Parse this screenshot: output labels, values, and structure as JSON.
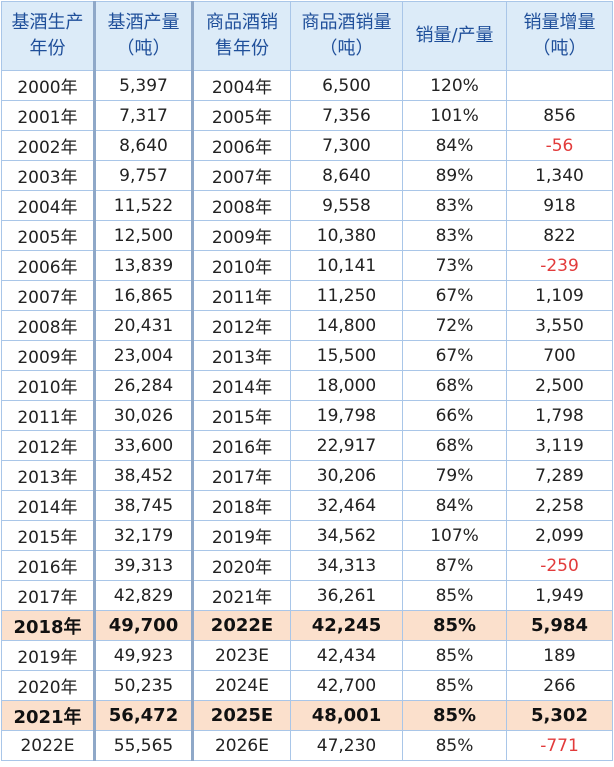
{
  "headers": [
    "基酒生产年份",
    "基酒产量（吨）",
    "商品酒销售年份",
    "商品酒销量（吨）",
    "销量/产量",
    "销量增量（吨）"
  ],
  "headers_lines": [
    [
      "基酒生产",
      "年份"
    ],
    [
      "基酒产量",
      "（吨）"
    ],
    [
      "商品酒销",
      "售年份"
    ],
    [
      "商品酒销量",
      "（吨）"
    ],
    [
      "销量/产量"
    ],
    [
      "销量增量",
      "（吨）"
    ]
  ],
  "rows": [
    {
      "base_year": "2000年",
      "base_output": "5,397",
      "sale_year": "2004年",
      "sales": "6,500",
      "ratio": "120%",
      "delta": "",
      "negative": false,
      "highlight": false
    },
    {
      "base_year": "2001年",
      "base_output": "7,317",
      "sale_year": "2005年",
      "sales": "7,356",
      "ratio": "101%",
      "delta": "856",
      "negative": false,
      "highlight": false
    },
    {
      "base_year": "2002年",
      "base_output": "8,640",
      "sale_year": "2006年",
      "sales": "7,300",
      "ratio": "84%",
      "delta": "-56",
      "negative": true,
      "highlight": false
    },
    {
      "base_year": "2003年",
      "base_output": "9,757",
      "sale_year": "2007年",
      "sales": "8,640",
      "ratio": "89%",
      "delta": "1,340",
      "negative": false,
      "highlight": false
    },
    {
      "base_year": "2004年",
      "base_output": "11,522",
      "sale_year": "2008年",
      "sales": "9,558",
      "ratio": "83%",
      "delta": "918",
      "negative": false,
      "highlight": false
    },
    {
      "base_year": "2005年",
      "base_output": "12,500",
      "sale_year": "2009年",
      "sales": "10,380",
      "ratio": "83%",
      "delta": "822",
      "negative": false,
      "highlight": false
    },
    {
      "base_year": "2006年",
      "base_output": "13,839",
      "sale_year": "2010年",
      "sales": "10,141",
      "ratio": "73%",
      "delta": "-239",
      "negative": true,
      "highlight": false
    },
    {
      "base_year": "2007年",
      "base_output": "16,865",
      "sale_year": "2011年",
      "sales": "11,250",
      "ratio": "67%",
      "delta": "1,109",
      "negative": false,
      "highlight": false
    },
    {
      "base_year": "2008年",
      "base_output": "20,431",
      "sale_year": "2012年",
      "sales": "14,800",
      "ratio": "72%",
      "delta": "3,550",
      "negative": false,
      "highlight": false
    },
    {
      "base_year": "2009年",
      "base_output": "23,004",
      "sale_year": "2013年",
      "sales": "15,500",
      "ratio": "67%",
      "delta": "700",
      "negative": false,
      "highlight": false
    },
    {
      "base_year": "2010年",
      "base_output": "26,284",
      "sale_year": "2014年",
      "sales": "18,000",
      "ratio": "68%",
      "delta": "2,500",
      "negative": false,
      "highlight": false
    },
    {
      "base_year": "2011年",
      "base_output": "30,026",
      "sale_year": "2015年",
      "sales": "19,798",
      "ratio": "66%",
      "delta": "1,798",
      "negative": false,
      "highlight": false
    },
    {
      "base_year": "2012年",
      "base_output": "33,600",
      "sale_year": "2016年",
      "sales": "22,917",
      "ratio": "68%",
      "delta": "3,119",
      "negative": false,
      "highlight": false
    },
    {
      "base_year": "2013年",
      "base_output": "38,452",
      "sale_year": "2017年",
      "sales": "30,206",
      "ratio": "79%",
      "delta": "7,289",
      "negative": false,
      "highlight": false
    },
    {
      "base_year": "2014年",
      "base_output": "38,745",
      "sale_year": "2018年",
      "sales": "32,464",
      "ratio": "84%",
      "delta": "2,258",
      "negative": false,
      "highlight": false
    },
    {
      "base_year": "2015年",
      "base_output": "32,179",
      "sale_year": "2019年",
      "sales": "34,562",
      "ratio": "107%",
      "delta": "2,099",
      "negative": false,
      "highlight": false
    },
    {
      "base_year": "2016年",
      "base_output": "39,313",
      "sale_year": "2020年",
      "sales": "34,313",
      "ratio": "87%",
      "delta": "-250",
      "negative": true,
      "highlight": false
    },
    {
      "base_year": "2017年",
      "base_output": "42,829",
      "sale_year": "2021年",
      "sales": "36,261",
      "ratio": "85%",
      "delta": "1,949",
      "negative": false,
      "highlight": false
    },
    {
      "base_year": "2018年",
      "base_output": "49,700",
      "sale_year": "2022E",
      "sales": "42,245",
      "ratio": "85%",
      "delta": "5,984",
      "negative": false,
      "highlight": true
    },
    {
      "base_year": "2019年",
      "base_output": "49,923",
      "sale_year": "2023E",
      "sales": "42,434",
      "ratio": "85%",
      "delta": "189",
      "negative": false,
      "highlight": false
    },
    {
      "base_year": "2020年",
      "base_output": "50,235",
      "sale_year": "2024E",
      "sales": "42,700",
      "ratio": "85%",
      "delta": "266",
      "negative": false,
      "highlight": false
    },
    {
      "base_year": "2021年",
      "base_output": "56,472",
      "sale_year": "2025E",
      "sales": "48,001",
      "ratio": "85%",
      "delta": "5,302",
      "negative": false,
      "highlight": true
    },
    {
      "base_year": "2022E",
      "base_output": "55,565",
      "sale_year": "2026E",
      "sales": "47,230",
      "ratio": "85%",
      "delta": "-771",
      "negative": true,
      "highlight": false
    }
  ],
  "colors": {
    "header_bg": "#dcebf8",
    "header_text": "#1f4f9a",
    "highlight_bg": "#fbe0cc",
    "negative_text": "#e23b3b",
    "border": "#a9c6e8"
  }
}
